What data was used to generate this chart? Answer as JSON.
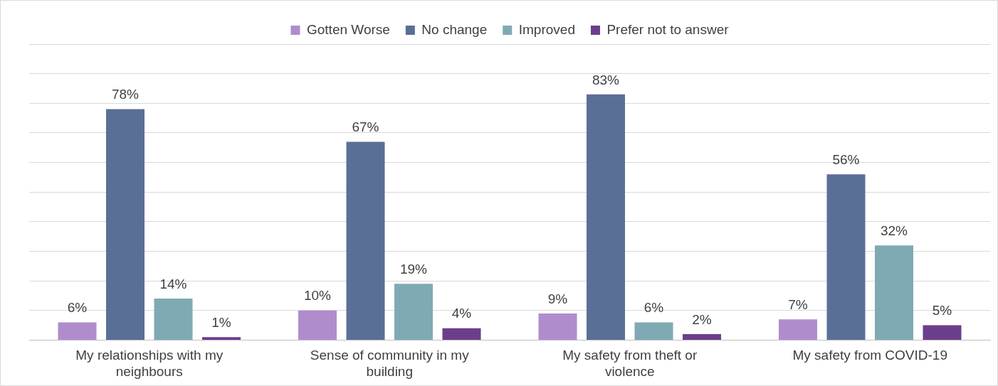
{
  "chart_data": {
    "type": "bar",
    "categories": [
      "My relationships with my neighbours",
      "Sense of community in my building",
      "My safety from theft or violence",
      "My safety from COVID-19"
    ],
    "series": [
      {
        "name": "Gotten Worse",
        "color": "#b08ccd",
        "values": [
          6,
          10,
          9,
          7
        ],
        "value_labels": [
          "6%",
          "10%",
          "9%",
          "7%"
        ]
      },
      {
        "name": "No change",
        "color": "#5a6f97",
        "values": [
          78,
          67,
          83,
          56
        ],
        "value_labels": [
          "78%",
          "67%",
          "83%",
          "56%"
        ]
      },
      {
        "name": "Improved",
        "color": "#7faab4",
        "values": [
          14,
          19,
          6,
          32
        ],
        "value_labels": [
          "14%",
          "19%",
          "6%",
          "32%"
        ]
      },
      {
        "name": "Prefer not to answer",
        "color": "#6b3e8c",
        "values": [
          1,
          4,
          2,
          5
        ],
        "value_labels": [
          "1%",
          "4%",
          "2%",
          "5%"
        ]
      }
    ],
    "ylim": [
      0,
      100
    ],
    "yticks": [
      {
        "value": 0,
        "label": null
      },
      {
        "value": 10,
        "label": null
      },
      {
        "value": 20,
        "label": null
      },
      {
        "value": 30,
        "label": null
      },
      {
        "value": 40,
        "label": null
      },
      {
        "value": 50,
        "label": null
      },
      {
        "value": 60,
        "label": null
      },
      {
        "value": 70,
        "label": null
      },
      {
        "value": 80,
        "label": null
      },
      {
        "value": 90,
        "label": null
      },
      {
        "value": 100,
        "label": null
      }
    ],
    "tick_labels": "x",
    "grid": "y",
    "legend": "top"
  }
}
